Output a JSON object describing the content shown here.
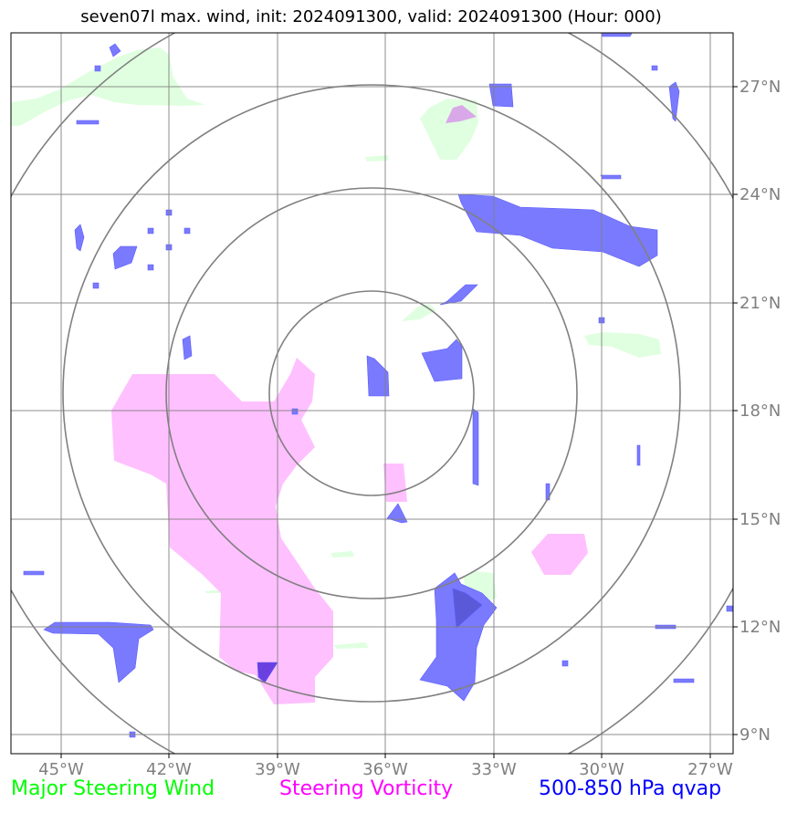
{
  "title": "seven07l max. wind, init: 2024091300, valid: 2024091300 (Hour: 000)",
  "lon_ticks": [
    "45°W",
    "42°W",
    "39°W",
    "36°W",
    "33°W",
    "30°W",
    "27°W"
  ],
  "lat_ticks": [
    "27°N",
    "24°N",
    "21°N",
    "18°N",
    "15°N",
    "12°N",
    "9°N"
  ],
  "center": "36.4°W 18.5°N",
  "legend": [
    {
      "label": "Major Steering Wind",
      "color": "#00ff00"
    },
    {
      "label": "Steering Vorticity",
      "color": "#ff00ff"
    },
    {
      "label": "500-850 hPa qvap",
      "color": "#0000ff"
    }
  ],
  "colors": {
    "wind_fill": "#e0ffe0",
    "vorticity_fill": "#ffc0ff",
    "qvap_fill": "#7a7aff",
    "grid": "#808080",
    "range_rings": "#808080"
  }
}
